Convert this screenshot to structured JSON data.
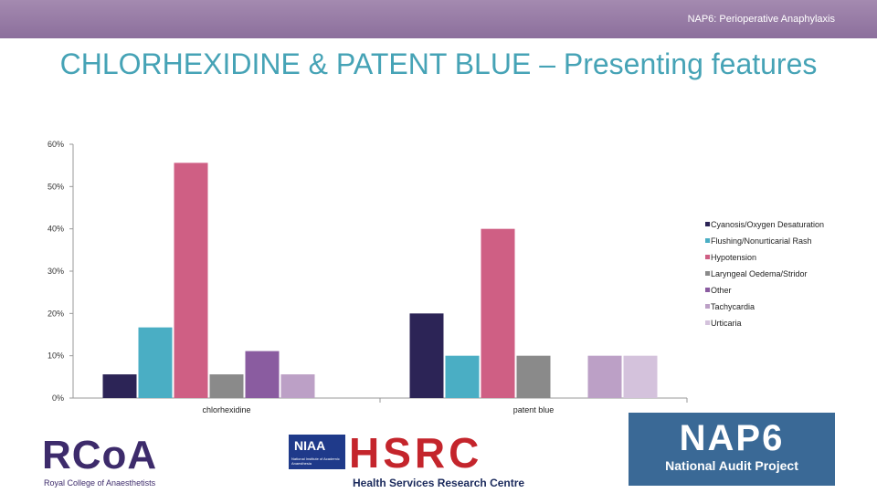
{
  "header": {
    "text": "NAP6: Perioperative Anaphylaxis"
  },
  "slide": {
    "title": "CHLORHEXIDINE & PATENT BLUE – Presenting features"
  },
  "chart_data": {
    "type": "bar",
    "categories": [
      "chlorhexidine",
      "patent blue"
    ],
    "series": [
      {
        "name": "Cyanosis/Oxygen Desaturation",
        "color": "#2c2456",
        "values": [
          5.6,
          20
        ]
      },
      {
        "name": "Flushing/Nonurticarial Rash",
        "color": "#4aaec4",
        "values": [
          16.7,
          10
        ]
      },
      {
        "name": "Hypotension",
        "color": "#cf5f84",
        "values": [
          55.6,
          40
        ]
      },
      {
        "name": "Laryngeal Oedema/Stridor",
        "color": "#8a8a8a",
        "values": [
          5.6,
          10
        ]
      },
      {
        "name": "Other",
        "color": "#8a5ca0",
        "values": [
          11.1,
          0
        ]
      },
      {
        "name": "Tachycardia",
        "color": "#bca0c6",
        "values": [
          5.6,
          10
        ]
      },
      {
        "name": "Urticaria",
        "color": "#d4c2dc",
        "values": [
          0,
          10
        ]
      }
    ],
    "y_ticks": [
      "0%",
      "10%",
      "20%",
      "30%",
      "40%",
      "50%",
      "60%"
    ],
    "ylim": [
      0,
      60
    ],
    "grid": false,
    "legend": "right"
  },
  "logos": {
    "rcoa": {
      "main": "RCoA",
      "sub": "Royal College of Anaesthetists"
    },
    "niaa": {
      "main": "NIAA",
      "sub": "National Institute of Academic Anaesthesia"
    },
    "hsrc": {
      "main": "HSRC",
      "sub": "Health Services Research Centre"
    },
    "nap6": {
      "main": "NAP6",
      "sub": "National Audit Project"
    }
  }
}
